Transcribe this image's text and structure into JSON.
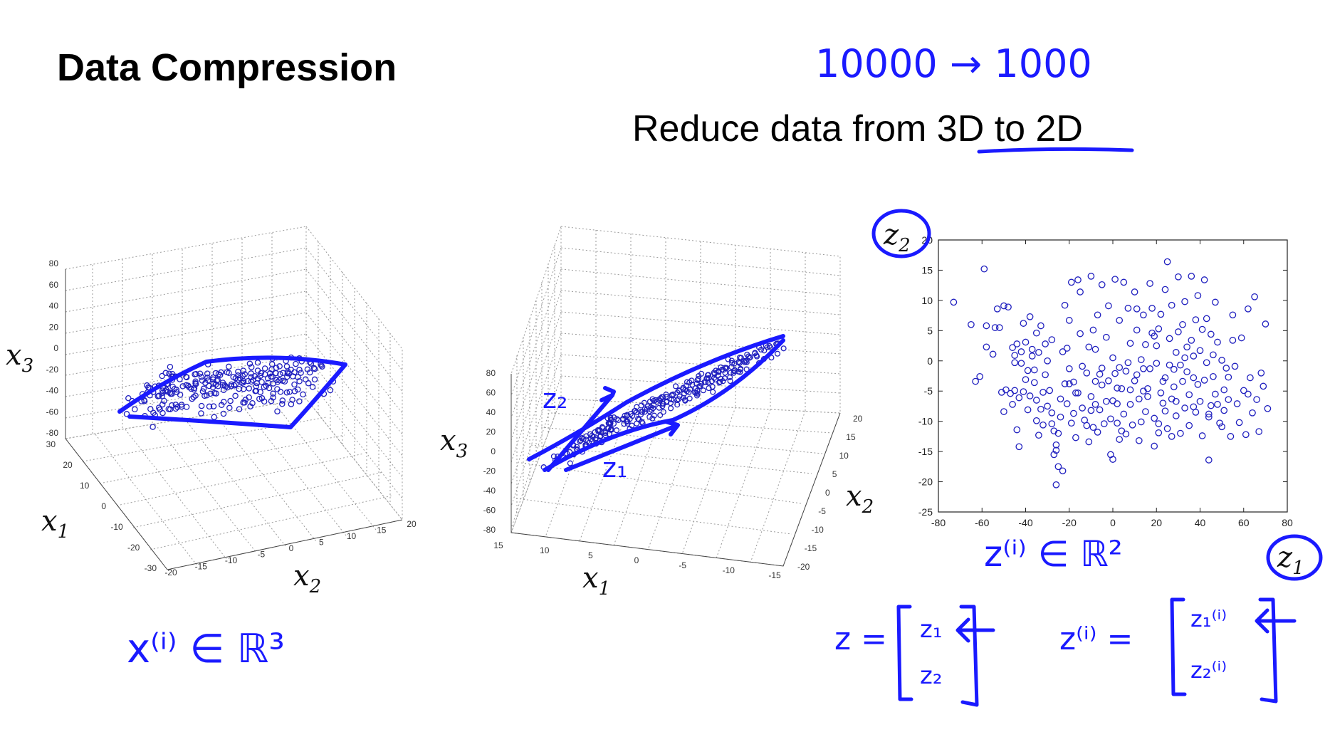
{
  "slide": {
    "title": "Data Compression",
    "subtitle_prefix": "Reduce data from ",
    "subtitle_emphasis": "3D to 2D",
    "note_top": "10000 → 1000"
  },
  "plot3d_left": {
    "xlabel_main": "x",
    "xlabel_sub": "2",
    "ylabel_main": "x",
    "ylabel_sub": "1",
    "zlabel_main": "x",
    "zlabel_sub": "3",
    "z_ticks": [
      "80",
      "60",
      "40",
      "20",
      "0",
      "-20",
      "-40",
      "-60",
      "-80"
    ],
    "x1_ticks": [
      "30",
      "20",
      "10",
      "0",
      "-10",
      "-20",
      "-30"
    ],
    "x2_ticks": [
      "-20",
      "-15",
      "-10",
      "-5",
      "0",
      "5",
      "10",
      "15",
      "20"
    ],
    "annotation": "x⁽ⁱ⁾ ∈ ℝ³"
  },
  "plot3d_mid": {
    "xlabel_main": "x",
    "xlabel_sub": "1",
    "ylabel_main": "x",
    "ylabel_sub": "2",
    "zlabel_main": "x",
    "zlabel_sub": "3",
    "z_ticks": [
      "80",
      "60",
      "40",
      "20",
      "0",
      "-20",
      "-40",
      "-60",
      "-80"
    ],
    "x1_ticks": [
      "15",
      "10",
      "5",
      "0",
      "-5",
      "-10",
      "-15"
    ],
    "x2_ticks": [
      "20",
      "15",
      "10",
      "5",
      "0",
      "-5",
      "-10",
      "-15",
      "-20"
    ],
    "annotation_z1": "z₁",
    "annotation_z2": "z₂"
  },
  "chart_data": {
    "type": "scatter",
    "xlabel": "z1",
    "ylabel": "z2",
    "xlim": [
      -80,
      80
    ],
    "ylim": [
      -25,
      20
    ],
    "x_ticks": [
      -80,
      -60,
      -40,
      -20,
      0,
      20,
      40,
      60,
      80
    ],
    "y_ticks": [
      -25,
      -20,
      -15,
      -10,
      -5,
      0,
      5,
      10,
      15,
      20
    ],
    "marker": "circle",
    "color": "#1f1fbf",
    "points": [
      [
        -73,
        9.7
      ],
      [
        -65,
        6
      ],
      [
        -63,
        -3.4
      ],
      [
        -61,
        -2.6
      ],
      [
        -59,
        15.2
      ],
      [
        -58,
        5.8
      ],
      [
        -58,
        2.3
      ],
      [
        -55,
        1.1
      ],
      [
        -54,
        5.5
      ],
      [
        -53,
        8.6
      ],
      [
        -52,
        5.5
      ],
      [
        -51,
        -5.2
      ],
      [
        -50,
        9.1
      ],
      [
        -49,
        -4.8
      ],
      [
        -48,
        8.9
      ],
      [
        -47,
        -5.4
      ],
      [
        -46,
        2.2
      ],
      [
        -45,
        0.9
      ],
      [
        -45,
        -0.3
      ],
      [
        -45,
        -4.9
      ],
      [
        -44,
        2.8
      ],
      [
        -44,
        -11.4
      ],
      [
        -43,
        -14.2
      ],
      [
        -43,
        -6.1
      ],
      [
        -42,
        -0.4
      ],
      [
        -42,
        1.5
      ],
      [
        -41,
        6.2
      ],
      [
        -41,
        -5.1
      ],
      [
        -40,
        3.1
      ],
      [
        -40,
        -3.1
      ],
      [
        -39,
        -8.1
      ],
      [
        -38,
        7.3
      ],
      [
        -38,
        -5.8
      ],
      [
        -37,
        1.9
      ],
      [
        -37,
        0.8
      ],
      [
        -36,
        -1.5
      ],
      [
        -36,
        -3.6
      ],
      [
        -35,
        -6.5
      ],
      [
        -35,
        -9.9
      ],
      [
        -34,
        1.4
      ],
      [
        -34,
        -12.3
      ],
      [
        -33,
        -8
      ],
      [
        -33,
        5.8
      ],
      [
        -32,
        -10.6
      ],
      [
        -32,
        -5.2
      ],
      [
        -31,
        2.8
      ],
      [
        -31,
        -2.3
      ],
      [
        -30,
        0
      ],
      [
        -30,
        -7.5
      ],
      [
        -29,
        -4.9
      ],
      [
        -28,
        -8.6
      ],
      [
        -28,
        -10.4
      ],
      [
        -27,
        -11.6
      ],
      [
        -27,
        -15.5
      ],
      [
        -26,
        -14.8
      ],
      [
        -26,
        -13.9
      ],
      [
        -26,
        -20.5
      ],
      [
        -25,
        -17.5
      ],
      [
        -25,
        -12
      ],
      [
        -24,
        -6.3
      ],
      [
        -23,
        1.5
      ],
      [
        -23,
        -18.2
      ],
      [
        -22,
        9.2
      ],
      [
        -22,
        -3.8
      ],
      [
        -21,
        2.1
      ],
      [
        -21,
        -7.1
      ],
      [
        -20,
        6.7
      ],
      [
        -20,
        -1.3
      ],
      [
        -19,
        13
      ],
      [
        -19,
        -10.3
      ],
      [
        -18,
        -3.5
      ],
      [
        -17,
        -12.7
      ],
      [
        -17,
        -5.3
      ],
      [
        -16,
        13.4
      ],
      [
        -16,
        -5.3
      ],
      [
        -15,
        11.4
      ],
      [
        -14,
        -0.9
      ],
      [
        -14,
        -7.8
      ],
      [
        -13,
        -9.8
      ],
      [
        -12,
        -2
      ],
      [
        -12,
        -10.7
      ],
      [
        -11,
        2.3
      ],
      [
        -11,
        -13.4
      ],
      [
        -10,
        14
      ],
      [
        -10,
        -5.9
      ],
      [
        -9,
        5.1
      ],
      [
        -9,
        -11
      ],
      [
        -8,
        -3.4
      ],
      [
        -8,
        -7.2
      ],
      [
        -7,
        7.6
      ],
      [
        -7,
        -11.8
      ],
      [
        -6,
        -2.2
      ],
      [
        -6,
        -8.1
      ],
      [
        -5,
        12.6
      ],
      [
        -5,
        -4
      ],
      [
        -4,
        -10.4
      ],
      [
        -3,
        3.9
      ],
      [
        -3,
        -6.7
      ],
      [
        -2,
        9.1
      ],
      [
        -2,
        -3.3
      ],
      [
        -1,
        -9.6
      ],
      [
        -1,
        -15.5
      ],
      [
        0,
        0.5
      ],
      [
        0,
        -16.3
      ],
      [
        0,
        -6.6
      ],
      [
        1,
        13.5
      ],
      [
        1,
        -2.1
      ],
      [
        2,
        -10.3
      ],
      [
        2,
        -7.1
      ],
      [
        3,
        6.7
      ],
      [
        3,
        -1.1
      ],
      [
        3,
        -13
      ],
      [
        4,
        -4.6
      ],
      [
        5,
        -8.8
      ],
      [
        5,
        13
      ],
      [
        6,
        -1.7
      ],
      [
        6,
        -12.1
      ],
      [
        7,
        8.7
      ],
      [
        8,
        -4.8
      ],
      [
        8,
        -7.2
      ],
      [
        8,
        2.9
      ],
      [
        9,
        -10.6
      ],
      [
        10,
        -3.3
      ],
      [
        10,
        11.4
      ],
      [
        11,
        5.1
      ],
      [
        11,
        -2.3
      ],
      [
        12,
        -13.2
      ],
      [
        12,
        -6.3
      ],
      [
        13,
        0.2
      ],
      [
        13,
        -10.1
      ],
      [
        14,
        7.6
      ],
      [
        14,
        -1.3
      ],
      [
        15,
        2.7
      ],
      [
        15,
        -8.4
      ],
      [
        16,
        -4.6
      ],
      [
        16,
        -5.9
      ],
      [
        17,
        12.8
      ],
      [
        17,
        -1.3
      ],
      [
        18,
        4.6
      ],
      [
        18,
        8.7
      ],
      [
        19,
        -9.5
      ],
      [
        19,
        -14.1
      ],
      [
        20,
        -0.4
      ],
      [
        20,
        2.5
      ],
      [
        21,
        5.3
      ],
      [
        21,
        -11.9
      ],
      [
        22,
        -5.3
      ],
      [
        22,
        7.7
      ],
      [
        23,
        -3.4
      ],
      [
        23,
        -7
      ],
      [
        24,
        11.8
      ],
      [
        24,
        -2.8
      ],
      [
        25,
        16.4
      ],
      [
        25,
        -11.2
      ],
      [
        26,
        3.7
      ],
      [
        26,
        -0.7
      ],
      [
        27,
        9.2
      ],
      [
        27,
        -6.3
      ],
      [
        28,
        -1.4
      ],
      [
        28,
        -4.3
      ],
      [
        29,
        1.4
      ],
      [
        29,
        -9.1
      ],
      [
        30,
        13.9
      ],
      [
        30,
        4.8
      ],
      [
        31,
        -0.7
      ],
      [
        31,
        -12
      ],
      [
        32,
        6
      ],
      [
        32,
        -3.4
      ],
      [
        33,
        -7.8
      ],
      [
        33,
        9.8
      ],
      [
        34,
        2.3
      ],
      [
        34,
        -1.8
      ],
      [
        35,
        -5.6
      ],
      [
        35,
        -10.7
      ],
      [
        36,
        14
      ],
      [
        36,
        3.4
      ],
      [
        37,
        -2.8
      ],
      [
        37,
        0.8
      ],
      [
        38,
        -8.5
      ],
      [
        38,
        6.8
      ],
      [
        39,
        10.8
      ],
      [
        39,
        -3.9
      ],
      [
        40,
        -6.7
      ],
      [
        40,
        1.7
      ],
      [
        41,
        -12.4
      ],
      [
        42,
        13.4
      ],
      [
        42,
        -3.2
      ],
      [
        43,
        7
      ],
      [
        43,
        -0.3
      ],
      [
        44,
        -9.3
      ],
      [
        44,
        -16.4
      ],
      [
        45,
        -7.4
      ],
      [
        45,
        4.4
      ],
      [
        46,
        1
      ],
      [
        46,
        -2.6
      ],
      [
        47,
        -5.5
      ],
      [
        47,
        9.7
      ],
      [
        48,
        -7.2
      ],
      [
        48,
        3.1
      ],
      [
        49,
        -10.3
      ],
      [
        50,
        0.1
      ],
      [
        51,
        -4.8
      ],
      [
        51,
        -8.2
      ],
      [
        52,
        -1.2
      ],
      [
        53,
        -6.4
      ],
      [
        54,
        -12.5
      ],
      [
        55,
        7.6
      ],
      [
        55,
        3.4
      ],
      [
        56,
        -0.9
      ],
      [
        57,
        -7.1
      ],
      [
        58,
        -10.2
      ],
      [
        59,
        3.8
      ],
      [
        60,
        -4.9
      ],
      [
        61,
        -12.2
      ],
      [
        62,
        -5.5
      ],
      [
        62,
        8.6
      ],
      [
        63,
        -2.8
      ],
      [
        64,
        -8.6
      ],
      [
        65,
        10.6
      ],
      [
        66,
        -6.4
      ],
      [
        67,
        -11.7
      ],
      [
        68,
        -2
      ],
      [
        69,
        -4.2
      ],
      [
        70,
        6.1
      ],
      [
        71,
        -7.9
      ],
      [
        -35,
        4.6
      ],
      [
        -18,
        -8.7
      ],
      [
        -5,
        -1.2
      ],
      [
        7,
        -0.3
      ],
      [
        19,
        4.1
      ],
      [
        29,
        -6.7
      ],
      [
        41,
        5.2
      ],
      [
        -28,
        3.5
      ],
      [
        -10,
        -8.2
      ],
      [
        14,
        -5
      ],
      [
        33,
        0.5
      ],
      [
        50,
        -10.9
      ],
      [
        -50,
        -8.4
      ],
      [
        -39,
        -1.6
      ],
      [
        -24,
        -9.3
      ],
      [
        -8,
        1.9
      ],
      [
        4,
        -11.6
      ],
      [
        21,
        -10.4
      ],
      [
        37,
        -7.6
      ],
      [
        53,
        -2.7
      ],
      [
        -46,
        -7.2
      ],
      [
        -20,
        -3.8
      ],
      [
        2,
        -4.5
      ],
      [
        24,
        -8.3
      ],
      [
        44,
        -8.8
      ],
      [
        -15,
        4.5
      ],
      [
        11,
        8.6
      ],
      [
        27,
        -12.5
      ]
    ]
  },
  "plot2d": {
    "ylabel_main": "z",
    "ylabel_sub": "2",
    "xlabel_main": "z",
    "xlabel_sub": "1",
    "annotation": "z⁽ⁱ⁾ ∈ ℝ²",
    "vector_left_lhs": "z =",
    "vector_left_top": "z₁",
    "vector_left_bottom": "z₂",
    "vector_right_lhs": "z⁽ⁱ⁾ =",
    "vector_right_top": "z₁⁽ⁱ⁾",
    "vector_right_bottom": "z₂⁽ⁱ⁾"
  }
}
